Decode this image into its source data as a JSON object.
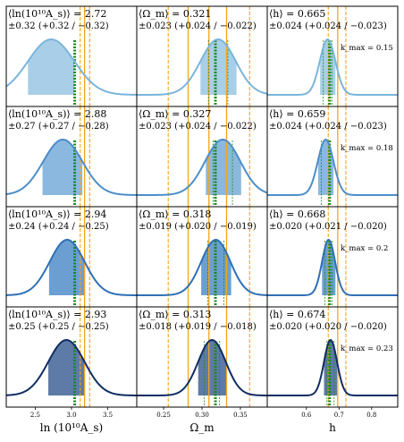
{
  "chart_data": {
    "type": "grid-of-posterior-distributions",
    "columns": [
      {
        "param": "lnAs",
        "xlabel": "ln (10¹⁰A_s)",
        "xlim": [
          2.1,
          3.9
        ],
        "ticks": [
          2.5,
          3.0,
          3.5
        ],
        "tick_labels": [
          "2.5",
          "3.0",
          "3.5"
        ],
        "truth": 3.044,
        "prior_solid": [
          3.18
        ],
        "prior_dashed": [
          3.12,
          3.25
        ]
      },
      {
        "param": "Omega_m",
        "xlabel": "Ω_m",
        "xlim": [
          0.215,
          0.385
        ],
        "ticks": [
          0.25,
          0.3,
          0.35
        ],
        "tick_labels": [
          "0.25",
          "0.30",
          "0.35"
        ],
        "truth": 0.3175,
        "prior_solid": [
          0.282,
          0.309,
          0.332
        ],
        "prior_dashed": [
          0.256,
          0.362
        ]
      },
      {
        "param": "h",
        "xlabel": "h",
        "xlim": [
          0.48,
          0.88
        ],
        "ticks": [
          0.6,
          0.7,
          0.8
        ],
        "tick_labels": [
          "0.6",
          "0.7",
          "0.8"
        ],
        "truth": 0.6711,
        "prior_solid": [
          0.696
        ],
        "prior_dashed": [
          0.667,
          0.721
        ]
      }
    ],
    "rows": [
      {
        "kmax_label": "k_max = 0.15",
        "color": "#a9cfe8",
        "line": "#7ab5db",
        "panels": [
          {
            "mean_text": "⟨ln(10¹⁰A_s)⟩ = 2.72",
            "err_text": "±0.32 (+0.32 / −0.32)",
            "mean": 2.72,
            "sigma": 0.32,
            "band": [
              2.4,
              3.04
            ]
          },
          {
            "mean_text": "⟨Ω_m⟩ = 0.321",
            "err_text": "±0.023 (+0.024 / −0.022)",
            "mean": 0.321,
            "sigma": 0.023,
            "band": [
              0.298,
              0.345
            ]
          },
          {
            "mean_text": "⟨h⟩ = 0.665",
            "err_text": "±0.024 (+0.024 / −0.023)",
            "mean": 0.665,
            "sigma": 0.024,
            "band": [
              0.642,
              0.689
            ]
          }
        ]
      },
      {
        "kmax_label": "k_max = 0.18",
        "color": "#8bb8de",
        "line": "#4c8ec9",
        "panels": [
          {
            "mean_text": "⟨ln(10¹⁰A_s)⟩ = 2.88",
            "err_text": "±0.27 (+0.27 / −0.28)",
            "mean": 2.88,
            "sigma": 0.27,
            "band": [
              2.6,
              3.15
            ]
          },
          {
            "mean_text": "⟨Ω_m⟩ = 0.327",
            "err_text": "±0.023 (+0.024 / −0.022)",
            "mean": 0.327,
            "sigma": 0.023,
            "band": [
              0.305,
              0.351
            ]
          },
          {
            "mean_text": "⟨h⟩ = 0.659",
            "err_text": "±0.024 (+0.024 / −0.023)",
            "mean": 0.659,
            "sigma": 0.024,
            "band": [
              0.636,
              0.683
            ]
          }
        ]
      },
      {
        "kmax_label": "k_max = 0.2",
        "color": "#6b9fd1",
        "line": "#2f6fb5",
        "panels": [
          {
            "mean_text": "⟨ln(10¹⁰A_s)⟩ = 2.94",
            "err_text": "±0.24 (+0.24 / −0.25)",
            "mean": 2.94,
            "sigma": 0.24,
            "band": [
              2.69,
              3.18
            ]
          },
          {
            "mean_text": "⟨Ω_m⟩ = 0.318",
            "err_text": "±0.019 (+0.020 / −0.019)",
            "mean": 0.318,
            "sigma": 0.019,
            "band": [
              0.299,
              0.338
            ]
          },
          {
            "mean_text": "⟨h⟩ = 0.668",
            "err_text": "±0.020 (+0.021 / −0.020)",
            "mean": 0.668,
            "sigma": 0.02,
            "band": [
              0.648,
              0.689
            ]
          }
        ]
      },
      {
        "kmax_label": "k_max = 0.23",
        "color": "#5e7aa6",
        "line": "#102d63",
        "panels": [
          {
            "mean_text": "⟨ln(10¹⁰A_s)⟩ = 2.93",
            "err_text": "±0.25 (+0.25 / −0.25)",
            "mean": 2.93,
            "sigma": 0.25,
            "band": [
              2.68,
              3.18
            ]
          },
          {
            "mean_text": "⟨Ω_m⟩ = 0.313",
            "err_text": "±0.018 (+0.019 / −0.018)",
            "mean": 0.313,
            "sigma": 0.018,
            "band": [
              0.295,
              0.332
            ]
          },
          {
            "mean_text": "⟨h⟩ = 0.674",
            "err_text": "±0.020 (+0.020 / −0.020)",
            "mean": 0.674,
            "sigma": 0.02,
            "band": [
              0.654,
              0.694
            ]
          }
        ]
      }
    ],
    "colors": {
      "truth": "#1a8a1a",
      "prior": "#f5a41c",
      "frame": "#000000"
    },
    "grid": false
  }
}
